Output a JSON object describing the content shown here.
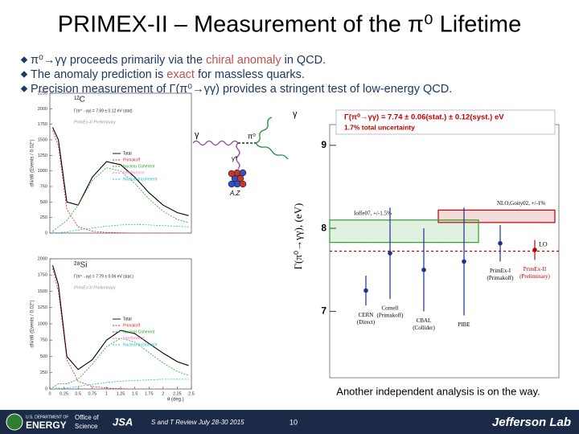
{
  "title": "PRIMEX-II – Measurement of the π⁰ Lifetime",
  "bullets": [
    [
      {
        "text": "π⁰→γγ proceeds primarily via the ",
        "color": "#1f3864"
      },
      {
        "text": "chiral anomaly",
        "color": "#c0504d"
      },
      {
        "text": " in QCD.",
        "color": "#1f3864"
      }
    ],
    [
      {
        "text": "The anomaly prediction is ",
        "color": "#1f3864"
      },
      {
        "text": "exact",
        "color": "#c0504d"
      },
      {
        "text": " for massless quarks.",
        "color": "#1f3864"
      }
    ],
    [
      {
        "text": "Precision measurement of Γ(π⁰→γγ) provides a stringent test of low-energy QCD.",
        "color": "#1f3864"
      }
    ]
  ],
  "spectra": [
    {
      "target": "¹²C",
      "result": "Γ(π⁰→γγ) = 7.69 ± 0.12 eV (stat)",
      "tag": "PrimEx-II Preliminary",
      "ylabel": "dN/dθ (Events / 0.02°)",
      "x": [
        0.05,
        0.15,
        0.3,
        0.5,
        0.75,
        1,
        1.25,
        1.5,
        1.75,
        2,
        2.25,
        2.45
      ],
      "xlim": [
        0,
        2.5
      ],
      "ylim": [
        0,
        2250
      ],
      "yticks": [
        0,
        250,
        500,
        750,
        1000,
        1250,
        1500,
        1750,
        2000,
        2250
      ],
      "series": [
        {
          "name": "Total",
          "color": "#000000",
          "values": [
            1700,
            1500,
            500,
            450,
            900,
            1150,
            1100,
            900,
            650,
            450,
            330,
            280
          ]
        },
        {
          "name": "Primakoff",
          "color": "#d62728",
          "values": [
            1650,
            1400,
            380,
            100,
            30,
            10,
            5,
            0,
            0,
            0,
            0,
            0
          ]
        },
        {
          "name": "Nuclear Coherent",
          "color": "#2ca02c",
          "values": [
            30,
            100,
            200,
            450,
            850,
            1050,
            1000,
            800,
            550,
            350,
            220,
            170
          ]
        },
        {
          "name": "Interference",
          "color": "#e377c2",
          "values": [
            20,
            0,
            -80,
            -100,
            -60,
            -20,
            0,
            0,
            0,
            0,
            0,
            0
          ]
        },
        {
          "name": "Nuclear Incoherent",
          "color": "#17becf",
          "values": [
            0,
            5,
            20,
            50,
            80,
            110,
            130,
            140,
            130,
            120,
            110,
            100
          ]
        }
      ]
    },
    {
      "target": "²⁸Si",
      "result": "Γ(π⁰→γγ) = 7.79 ± 0.06 eV (stat.)",
      "tag": "PrimEx-II Preliminary",
      "ylabel": "dN/dθ (Events / 0.02°)",
      "xlabel": "θ (deg.)",
      "x": [
        0.05,
        0.15,
        0.3,
        0.5,
        0.75,
        1,
        1.25,
        1.5,
        1.75,
        2,
        2.25,
        2.45
      ],
      "xlim": [
        0,
        2.5
      ],
      "ylim": [
        0,
        2000
      ],
      "yticks": [
        0,
        250,
        500,
        750,
        1000,
        1250,
        1500,
        1750,
        2000
      ],
      "xticks": [
        0,
        0.25,
        0.5,
        0.75,
        1,
        1.25,
        1.5,
        1.75,
        2,
        2.25,
        2.5
      ],
      "series": [
        {
          "name": "Total",
          "color": "#000000",
          "values": [
            1900,
            1600,
            500,
            300,
            450,
            750,
            900,
            850,
            700,
            550,
            420,
            360
          ]
        },
        {
          "name": "Primakoff",
          "color": "#d62728",
          "values": [
            1850,
            1500,
            450,
            120,
            40,
            15,
            5,
            0,
            0,
            0,
            0,
            0
          ]
        },
        {
          "name": "Nuclear Coherent",
          "color": "#2ca02c",
          "values": [
            20,
            80,
            80,
            150,
            380,
            650,
            780,
            720,
            560,
            400,
            270,
            210
          ]
        },
        {
          "name": "Interference",
          "color": "#e377c2",
          "values": [
            30,
            20,
            -40,
            -60,
            -40,
            -10,
            0,
            0,
            0,
            0,
            0,
            0
          ]
        },
        {
          "name": "Nuclear Incoherent",
          "color": "#17becf",
          "values": [
            0,
            5,
            15,
            40,
            70,
            100,
            120,
            130,
            140,
            150,
            150,
            150
          ]
        }
      ]
    }
  ],
  "diagram": {
    "labels": [
      "γ",
      "π⁰",
      "γ",
      "γ*",
      "A,Z"
    ]
  },
  "lifetime": {
    "ylabel": "Γ(π⁰→γγ), (eV)",
    "ylim": [
      6.2,
      9.25
    ],
    "yticks": [
      7,
      8,
      9
    ],
    "result": "Γ(π⁰→γγ) = 7.74 ± 0.06(stat.) ± 0.12(syst.) eV",
    "uncertainty": "1.7% total uncertainty",
    "points": [
      {
        "name": "CERN",
        "sub": "(Direct)",
        "value": 7.25,
        "error": 0.18,
        "color": "#1f2f8f"
      },
      {
        "name": "Cornell",
        "sub": "(Primakoff)",
        "value": 7.7,
        "error": 0.55,
        "color": "#1f2f8f"
      },
      {
        "name": "CBAL",
        "sub": "(Collider)",
        "value": 7.5,
        "error": 0.5,
        "color": "#1f2f8f"
      },
      {
        "name": "PIBE",
        "value": 7.6,
        "error": 0.65,
        "color": "#1f2f8f"
      },
      {
        "name": "PrimEx-I",
        "sub": "(Primakoff)",
        "value": 7.82,
        "error": 0.22,
        "color": "#1f2f8f"
      },
      {
        "name": "PrimEx-II",
        "sub": "(Preliminary)",
        "value": 7.74,
        "error": 0.12,
        "color": "#c00000"
      }
    ],
    "bands": [
      {
        "label": "NLO,Goity02, +/-1%",
        "range": [
          8.07,
          8.22
        ],
        "color": "#c00000"
      },
      {
        "label": "Ioffe07, +/-1.5%",
        "range": [
          7.83,
          8.1
        ],
        "color": "#2e9e2e"
      }
    ],
    "lines": [
      {
        "label": "LO",
        "value": 7.725,
        "color": "#c00000"
      }
    ]
  },
  "note": "Another independent analysis is on the way.",
  "footer": {
    "doe1": "U.S. DEPARTMENT OF",
    "doe2": "ENERGY",
    "office1": "Office of",
    "office2": "Science",
    "jsa": "JSA",
    "meeting": "S and T Review July 28-30 2015",
    "page": "10",
    "lab": "Jefferson Lab"
  }
}
